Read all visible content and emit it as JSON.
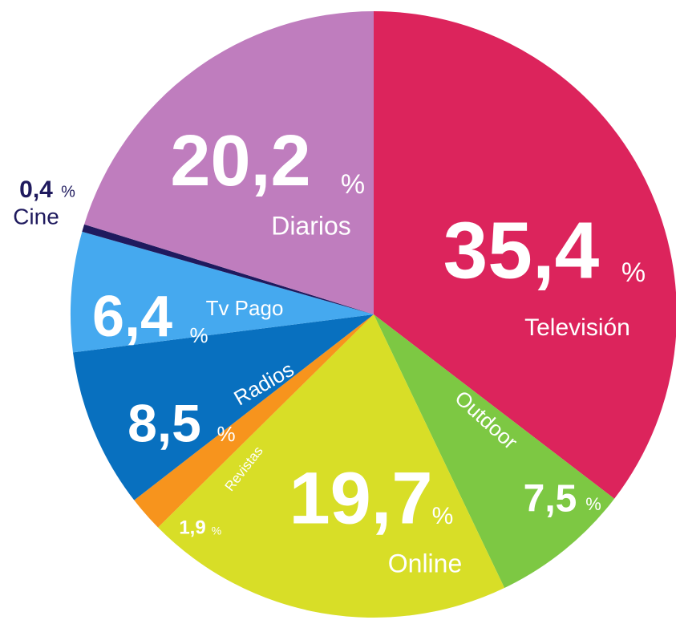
{
  "chart_data": {
    "type": "pie",
    "categories": [
      "Televisión",
      "Outdoor",
      "Online",
      "Revistas",
      "Radios",
      "Tv Pago",
      "Cine",
      "Diarios"
    ],
    "values": [
      35.4,
      7.5,
      19.7,
      1.9,
      8.5,
      6.4,
      0.4,
      20.2
    ],
    "value_labels": [
      "35,4",
      "7,5",
      "19,7",
      "1,9",
      "8,5",
      "6,4",
      "0,4",
      "20,2"
    ],
    "unit_label": "%",
    "colors": [
      "#dc245c",
      "#7dc843",
      "#d8de27",
      "#f7941d",
      "#0870bf",
      "#45a9ef",
      "#1f1a5e",
      "#bf7dbe"
    ]
  }
}
